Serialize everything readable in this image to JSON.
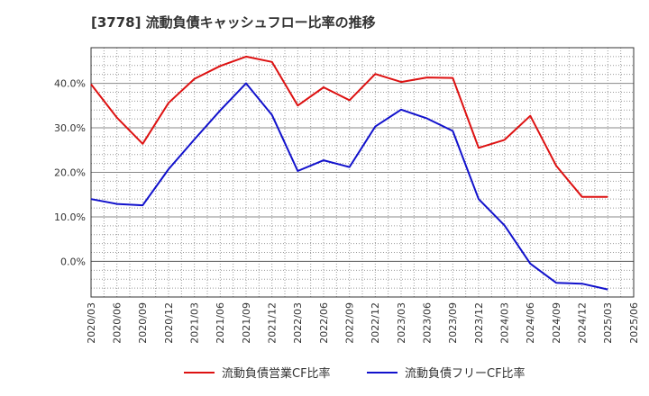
{
  "title": "[3778]  流動負債キャッシュフロー比率の推移",
  "chart_data": {
    "type": "line",
    "x": [
      "2020/03",
      "2020/06",
      "2020/09",
      "2020/12",
      "2021/03",
      "2021/06",
      "2021/09",
      "2021/12",
      "2022/03",
      "2022/06",
      "2022/09",
      "2022/12",
      "2023/03",
      "2023/06",
      "2023/09",
      "2023/12",
      "2024/03",
      "2024/06",
      "2024/09",
      "2024/12",
      "2025/03",
      "2025/06"
    ],
    "ylim": [
      -8,
      48
    ],
    "yticks": [
      0,
      10,
      20,
      30,
      40
    ],
    "ytick_labels": [
      "0.0%",
      "10.0%",
      "20.0%",
      "30.0%",
      "40.0%"
    ],
    "grid": true,
    "legend_position": "bottom",
    "series": [
      {
        "name": "流動負債営業CF比率",
        "color": "#dd1111",
        "points": [
          [
            "2020/03",
            39.8
          ],
          [
            "2020/06",
            32.3
          ],
          [
            "2020/09",
            26.4
          ],
          [
            "2020/12",
            35.6
          ],
          [
            "2021/03",
            41.0
          ],
          [
            "2021/06",
            43.9
          ],
          [
            "2021/09",
            46.0
          ],
          [
            "2021/12",
            44.8
          ],
          [
            "2022/03",
            35.0
          ],
          [
            "2022/06",
            39.1
          ],
          [
            "2022/09",
            36.2
          ],
          [
            "2022/12",
            42.1
          ],
          [
            "2023/03",
            40.3
          ],
          [
            "2023/06",
            41.3
          ],
          [
            "2023/09",
            41.2
          ],
          [
            "2023/12",
            25.5
          ],
          [
            "2024/03",
            27.3
          ],
          [
            "2024/06",
            32.7
          ],
          [
            "2024/09",
            21.5
          ],
          [
            "2024/12",
            14.5
          ],
          [
            "2025/03",
            14.5
          ]
        ]
      },
      {
        "name": "流動負債フリーCF比率",
        "color": "#1111cc",
        "points": [
          [
            "2020/03",
            14.0
          ],
          [
            "2020/06",
            12.9
          ],
          [
            "2020/09",
            12.6
          ],
          [
            "2020/12",
            20.7
          ],
          [
            "2021/03",
            27.4
          ],
          [
            "2021/06",
            33.9
          ],
          [
            "2021/09",
            40.0
          ],
          [
            "2021/12",
            32.9
          ],
          [
            "2022/03",
            20.3
          ],
          [
            "2022/06",
            22.7
          ],
          [
            "2022/09",
            21.2
          ],
          [
            "2022/12",
            30.3
          ],
          [
            "2023/03",
            34.1
          ],
          [
            "2023/06",
            32.1
          ],
          [
            "2023/09",
            29.3
          ],
          [
            "2023/12",
            14.0
          ],
          [
            "2024/03",
            8.1
          ],
          [
            "2024/06",
            -0.5
          ],
          [
            "2024/09",
            -4.8
          ],
          [
            "2024/12",
            -5.0
          ],
          [
            "2025/03",
            -6.3
          ]
        ]
      }
    ]
  }
}
